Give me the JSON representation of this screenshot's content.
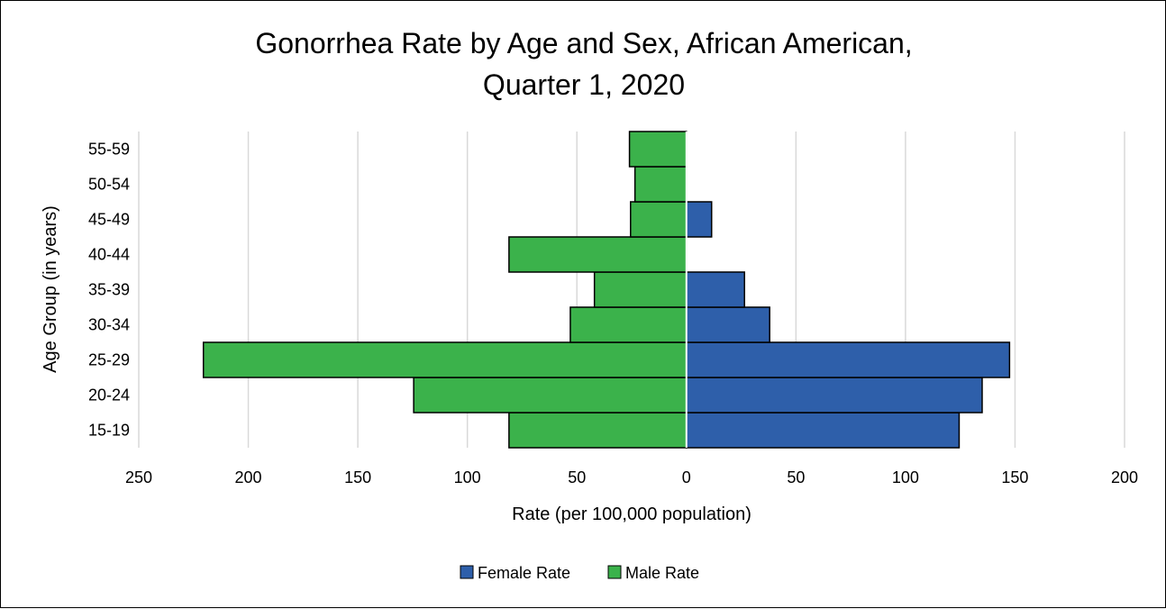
{
  "chart_data": {
    "type": "bar",
    "orientation": "horizontal",
    "layout": "population-pyramid",
    "title_lines": [
      "Gonorrhea Rate by Age and Sex, African American,",
      "Quarter 1, 2020"
    ],
    "xlabel": "Rate (per 100,000 population)",
    "ylabel": "Age Group (in years)",
    "categories": [
      "15-19",
      "20-24",
      "25-29",
      "30-34",
      "35-39",
      "40-44",
      "45-49",
      "50-54",
      "55-59"
    ],
    "x_ticks": [
      -250,
      -200,
      -150,
      -100,
      -50,
      0,
      50,
      100,
      150,
      200
    ],
    "x_tick_labels": [
      "250",
      "200",
      "150",
      "100",
      "50",
      "0",
      "50",
      "100",
      "150",
      "200"
    ],
    "xlim": [
      -250,
      200
    ],
    "grid": true,
    "legend_position": "bottom",
    "series": [
      {
        "name": "Female Rate",
        "side": "right",
        "color": "#2e5faa",
        "values": [
          124.5,
          135,
          147.5,
          38,
          26.5,
          0,
          11.5,
          0,
          0
        ]
      },
      {
        "name": "Male Rate",
        "side": "left",
        "color": "#3bb24b",
        "values": [
          81,
          124.5,
          220.5,
          53,
          42,
          81,
          25.5,
          23.5,
          26
        ]
      }
    ]
  }
}
